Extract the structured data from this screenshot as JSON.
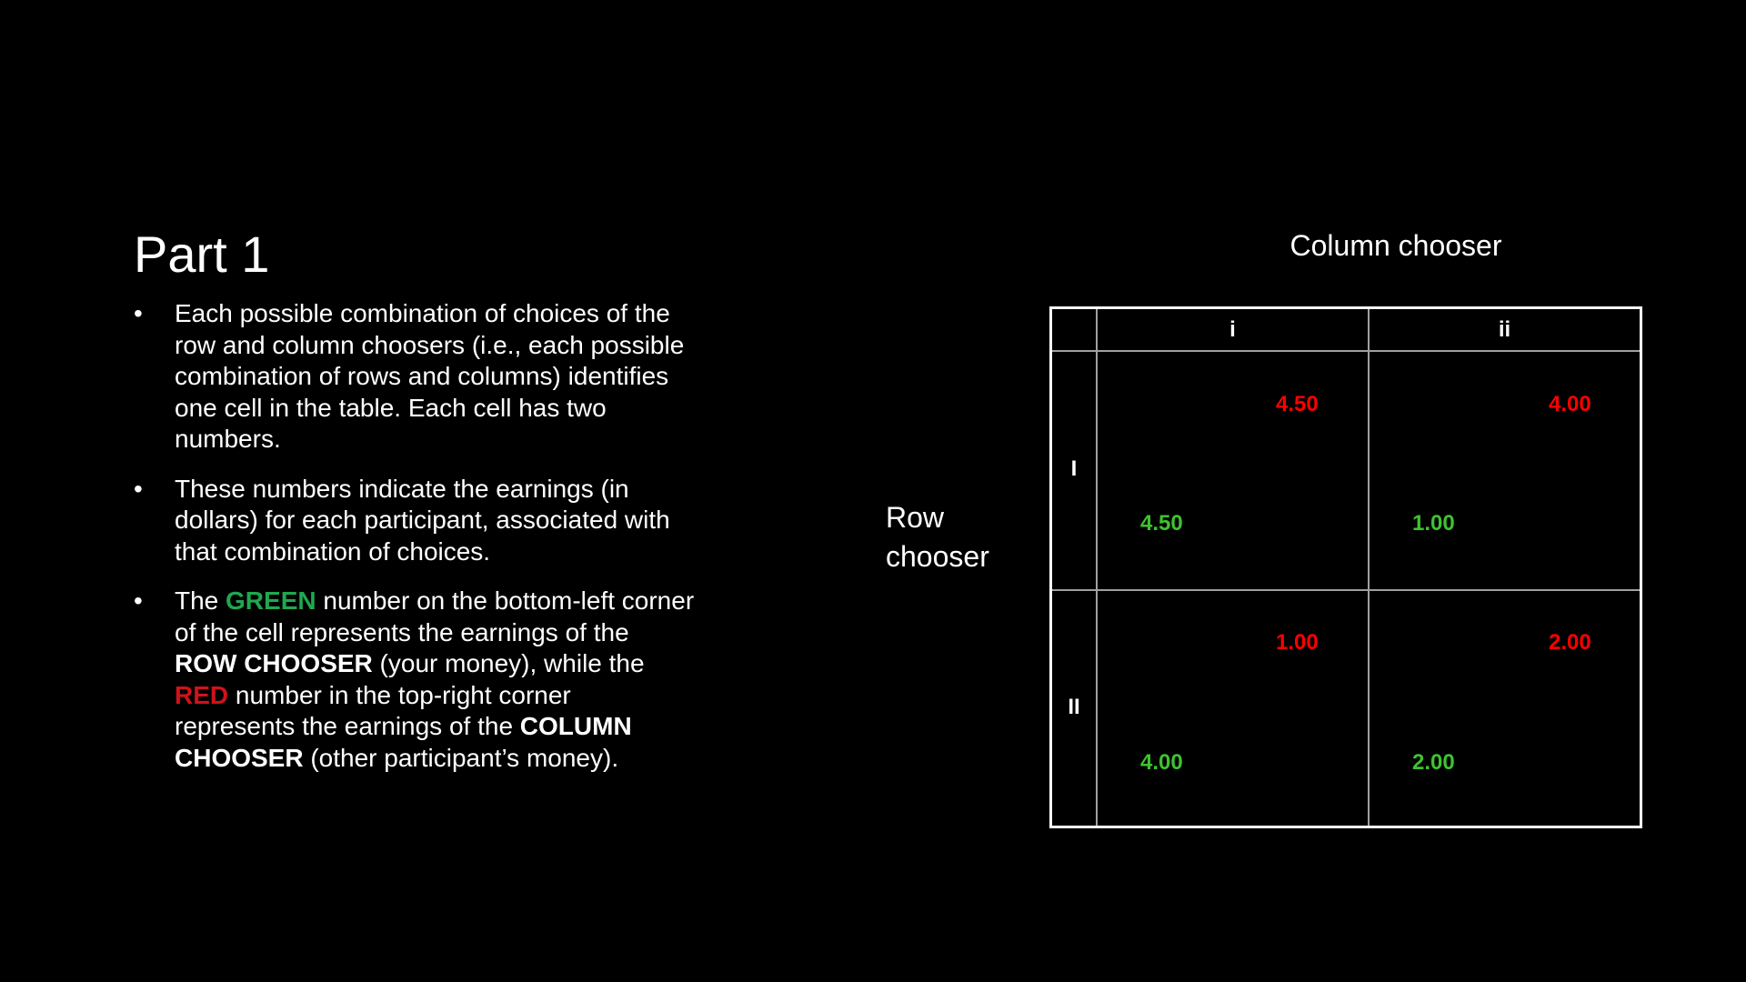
{
  "slide": {
    "title": "Part 1"
  },
  "bullets": {
    "b1": "Each possible combination of choices of the row and column choosers (i.e., each possible combination of rows and columns) identifies one cell in the table. Each cell has two numbers.",
    "b2": "These numbers indicate the earnings (in dollars) for each participant, associated with that combination of choices.",
    "b3": {
      "t1": "The ",
      "green": "GREEN",
      "t2": " number on the bottom-left corner of the cell represents the earnings of the ",
      "row_chooser": "ROW CHOOSER",
      "t3": " (your money), while the ",
      "red": "RED",
      "t4": " number in the top-right corner represents the earnings of the ",
      "column_chooser": "COLUMN CHOOSER",
      "t5": " (other participant’s money)."
    }
  },
  "labels": {
    "column_chooser": "Column chooser",
    "row_chooser_line1": "Row",
    "row_chooser_line2": "chooser"
  },
  "table": {
    "columns": [
      "i",
      "ii"
    ],
    "rows": [
      "I",
      "II"
    ],
    "cells": [
      [
        {
          "red": "4.50",
          "green": "4.50"
        },
        {
          "red": "4.00",
          "green": "1.00"
        }
      ],
      [
        {
          "red": "1.00",
          "green": "4.00"
        },
        {
          "red": "2.00",
          "green": "2.00"
        }
      ]
    ]
  },
  "colors": {
    "background": "#000000",
    "text": "#ffffff",
    "green_keyword": "#1fa84f",
    "red_keyword": "#d0121b",
    "green_payoff": "#3ec32e",
    "red_payoff": "#ff0000"
  }
}
